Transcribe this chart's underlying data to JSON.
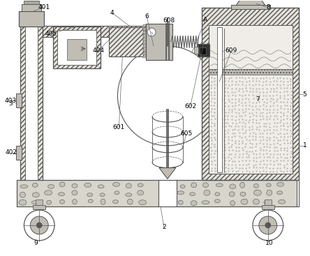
{
  "bg": "white",
  "lc": "#555555",
  "lc2": "#888888",
  "hatch_color": "#777777",
  "gravel_fc": "#d8d5cc",
  "gravel_stone": "#c5c2b8",
  "frame_fc": "#e5e2da",
  "tank_inner_fc": "#eeebe3",
  "water_fc": "#e0ddd5",
  "dark_fc": "#444444",
  "mid_fc": "#c0bdb5",
  "light_fc": "#f0ede8"
}
